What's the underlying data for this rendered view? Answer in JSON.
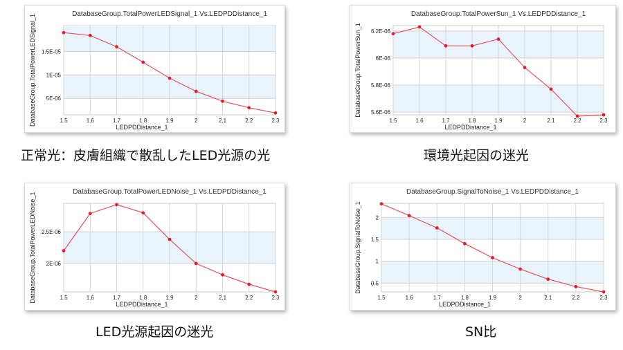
{
  "chart_data": [
    {
      "type": "line",
      "title": "DatabaseGroup.TotalPowerLEDSignal_1 Vs.LEDPDDistance_1",
      "xlabel": "LEDPDDistance_1",
      "ylabel": "DatabaseGroup.TotalPowerLEDSignal_1",
      "caption": "正常光：皮膚組織で散乱したLED光源の光",
      "x": [
        1.5,
        1.6,
        1.7,
        1.8,
        1.9,
        2.0,
        2.1,
        2.2,
        2.3
      ],
      "x_ticks": [
        "1.5",
        "1.6",
        "1.7",
        "1.8",
        "1.9",
        "2",
        "2.1",
        "2.2",
        "2.3"
      ],
      "y_ticks": [
        {
          "v": 5e-06,
          "label": "5E-06"
        },
        {
          "v": 1e-05,
          "label": "1E-05"
        },
        {
          "v": 1.5e-05,
          "label": "1.5E-05"
        }
      ],
      "ylim": [
        1.5e-06,
        2.05e-05
      ],
      "series": [
        {
          "values": [
            1.9e-05,
            1.84e-05,
            1.6e-05,
            1.27e-05,
            9.3e-06,
            6.5e-06,
            4.4e-06,
            3e-06,
            1.9e-06
          ]
        }
      ],
      "line_color": "#e8505a",
      "grid": true
    },
    {
      "type": "line",
      "title": "DatabaseGroup.TotalPowerSun_1 Vs.LEDPDDistance_1",
      "xlabel": "LEDPDDistance_1",
      "ylabel": "DatabaseGroup.TotalPowerSun_1",
      "caption": "環境光起因の迷光",
      "x": [
        1.5,
        1.6,
        1.7,
        1.8,
        1.9,
        2.0,
        2.1,
        2.2,
        2.3
      ],
      "x_ticks": [
        "1.5",
        "1.6",
        "1.7",
        "1.8",
        "1.9",
        "2",
        "2.1",
        "2.2",
        "2.3"
      ],
      "y_ticks": [
        {
          "v": 5.6e-06,
          "label": "5.6E-06"
        },
        {
          "v": 5.8e-06,
          "label": "5.8E-06"
        },
        {
          "v": 6e-06,
          "label": "6E-06"
        },
        {
          "v": 6.2e-06,
          "label": "6.2E-06"
        }
      ],
      "ylim": [
        5.58e-06,
        6.24e-06
      ],
      "series": [
        {
          "values": [
            6.18e-06,
            6.23e-06,
            6.09e-06,
            6.09e-06,
            6.14e-06,
            5.93e-06,
            5.77e-06,
            5.57e-06,
            5.58e-06
          ]
        }
      ],
      "line_color": "#e8505a",
      "grid": true
    },
    {
      "type": "line",
      "title": "DatabaseGroup.TotalPowerLEDNoise_1 Vs.LEDPDDistance_1",
      "xlabel": "LEDPDDistance_1",
      "ylabel": "DatabaseGroup.TotalPowerLEDNoise_1",
      "caption": "LED光源起因の迷光",
      "x": [
        1.5,
        1.6,
        1.7,
        1.8,
        1.9,
        2.0,
        2.1,
        2.2,
        2.3
      ],
      "x_ticks": [
        "1.5",
        "1.6",
        "1.7",
        "1.8",
        "1.9",
        "2",
        "2.1",
        "2.2",
        "2.3"
      ],
      "y_ticks": [
        {
          "v": 2e-06,
          "label": "2E-06"
        },
        {
          "v": 2.5e-06,
          "label": "2.5E-06"
        }
      ],
      "ylim": [
        1.55e-06,
        2.95e-06
      ],
      "series": [
        {
          "values": [
            2.2e-06,
            2.79e-06,
            2.93e-06,
            2.8e-06,
            2.38e-06,
            2e-06,
            1.82e-06,
            1.67e-06,
            1.55e-06
          ]
        }
      ],
      "line_color": "#e8505a",
      "grid": true
    },
    {
      "type": "line",
      "title": "DatabaseGroup.SignalToNoise_1 Vs.LEDPDDistance_1",
      "xlabel": "LEDPDDistance_1",
      "ylabel": "DatabaseGroup.SignalToNoise_1",
      "caption": "SN比",
      "x": [
        1.5,
        1.6,
        1.7,
        1.8,
        1.9,
        2.0,
        2.1,
        2.2,
        2.3
      ],
      "x_ticks": [
        "1.5",
        "1.6",
        "1.7",
        "1.8",
        "1.9",
        "2",
        "2.1",
        "2.2",
        "2.3"
      ],
      "y_ticks": [
        {
          "v": 0.5,
          "label": "0.5"
        },
        {
          "v": 1,
          "label": "1"
        },
        {
          "v": 1.5,
          "label": "1.5"
        },
        {
          "v": 2,
          "label": "2"
        }
      ],
      "ylim": [
        0.3,
        2.32
      ],
      "series": [
        {
          "values": [
            2.31,
            2.04,
            1.76,
            1.4,
            1.08,
            0.82,
            0.59,
            0.42,
            0.3
          ]
        }
      ],
      "line_color": "#e8505a",
      "grid": true
    }
  ]
}
